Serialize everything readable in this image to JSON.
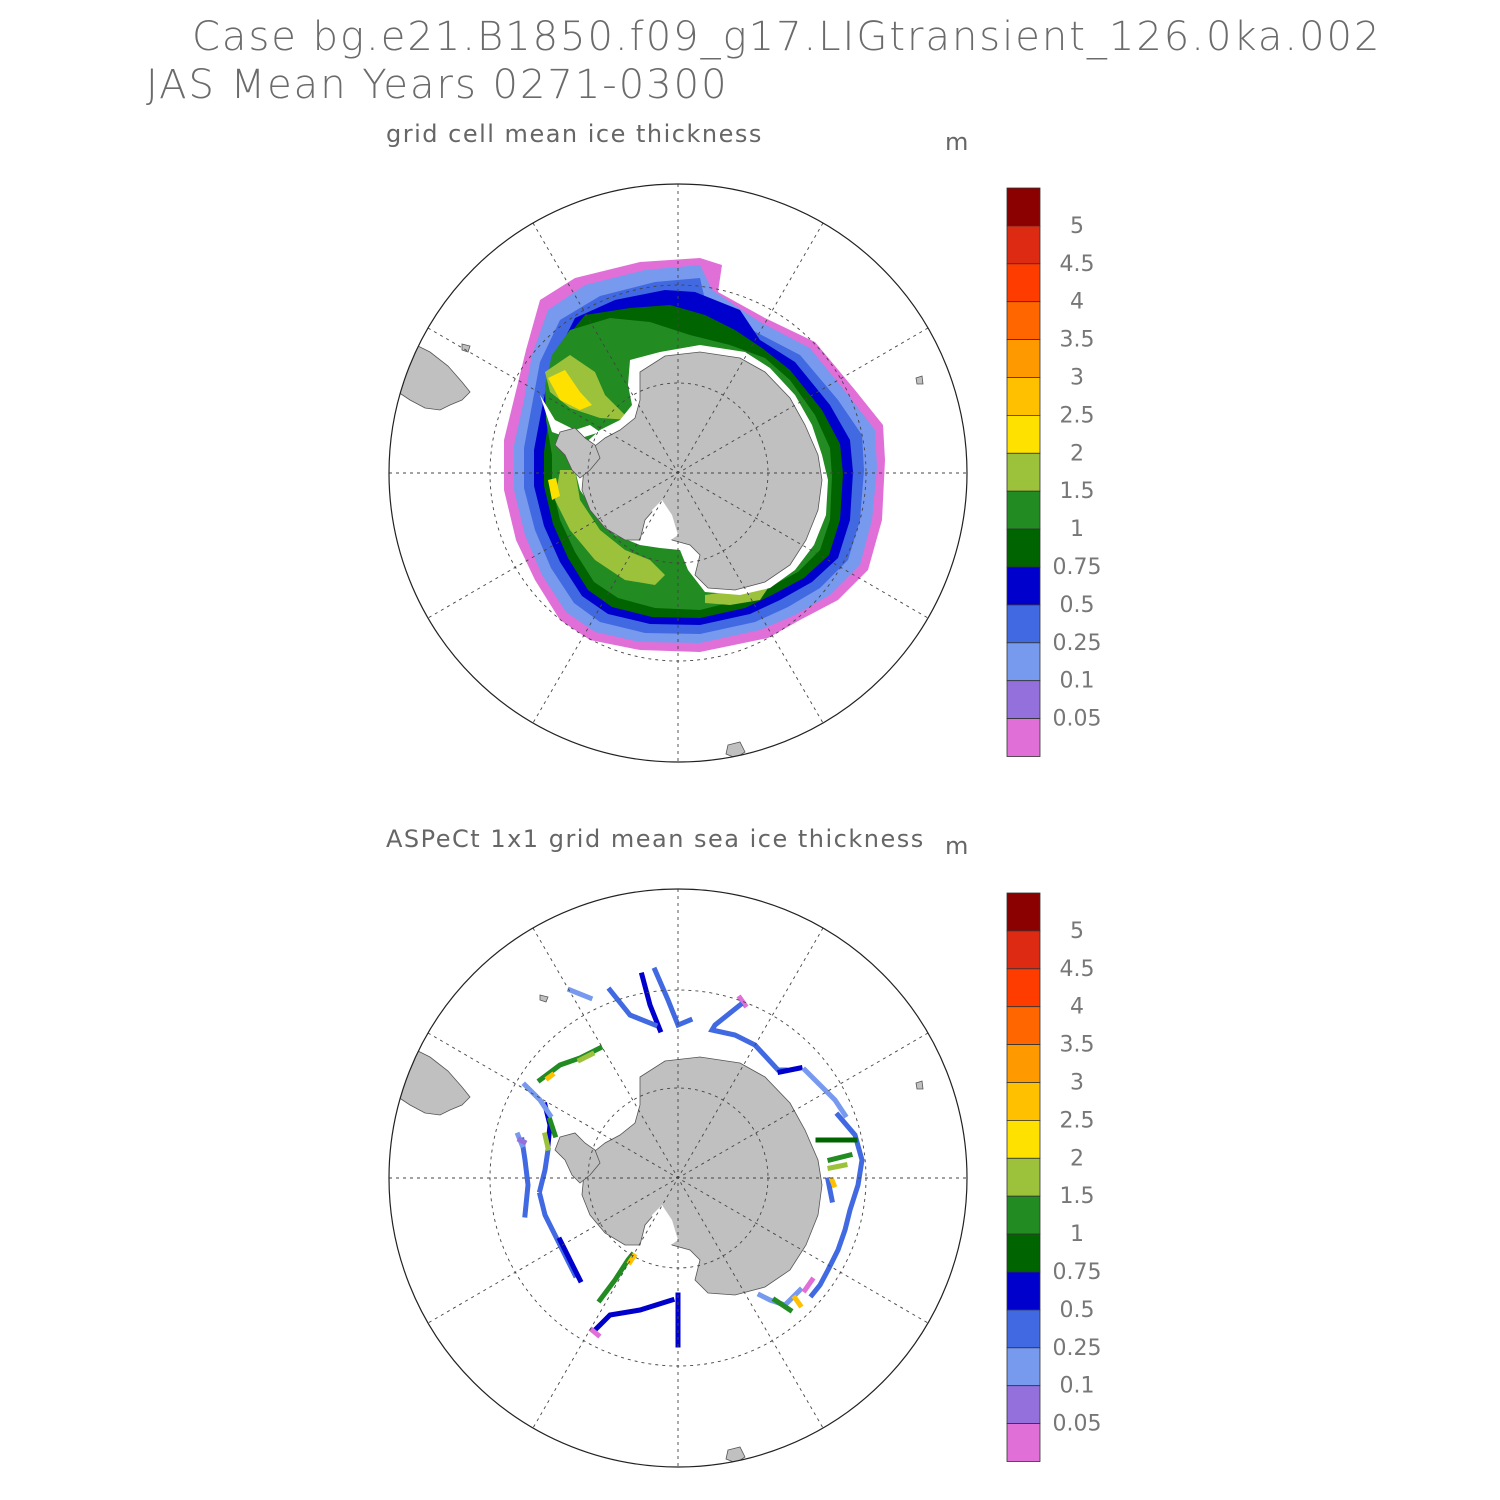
{
  "header": {
    "line1": "Case bg.e21.B1850.f09_g17.LIGtransient_126.0ka.002",
    "line2": "JAS Mean    Years 0271-0300"
  },
  "panels": [
    {
      "title": "grid cell mean ice thickness",
      "unit": "m"
    },
    {
      "title": "ASPeCt 1x1 grid mean sea ice thickness",
      "unit": "m"
    }
  ],
  "colorbar": {
    "levels": [
      "5",
      "4.5",
      "4",
      "3.5",
      "3",
      "2.5",
      "2",
      "1.5",
      "1",
      "0.75",
      "0.5",
      "0.25",
      "0.1",
      "0.05"
    ],
    "colors": [
      "#8b0000",
      "#dd2a12",
      "#ff3c00",
      "#ff6600",
      "#ff9900",
      "#ffc000",
      "#ffe100",
      "#9cc23c",
      "#228b22",
      "#006400",
      "#0000cd",
      "#4169e1",
      "#7799ee",
      "#9370db",
      "#e070d8"
    ]
  },
  "map": {
    "land_color": "#c0c0c0",
    "projection": "south-polar-stereographic"
  }
}
